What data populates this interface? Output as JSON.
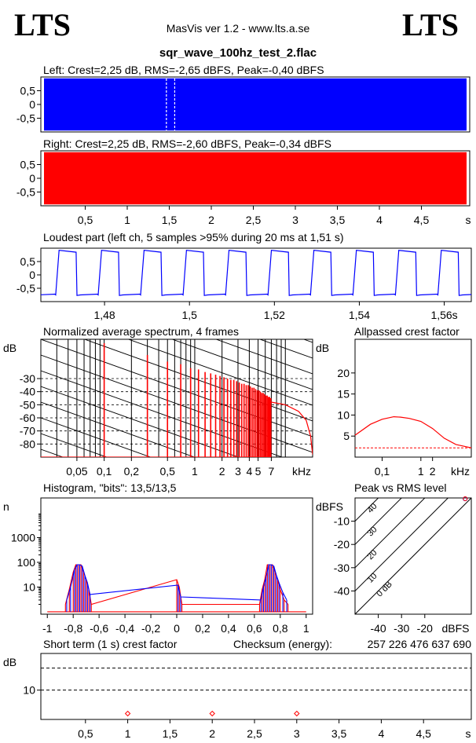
{
  "header": {
    "logo_left": "LTS",
    "logo_right": "LTS",
    "version": "MasVis ver 1.2 - www.lts.a.se",
    "filename": "sqr_wave_100hz_test_2.flac"
  },
  "colors": {
    "left": "#0000ff",
    "right": "#ff0000",
    "grid": "#000000"
  },
  "chart_data": [
    {
      "type": "area",
      "title": "Left: Crest=2,25 dB, RMS=-2,65 dBFS, Peak=-0,40 dBFS",
      "channel": "left",
      "amplitude": 0.95,
      "ylim": [
        -1,
        1
      ],
      "yticks": [
        {
          "v": 0.5,
          "label": "0,5"
        },
        {
          "v": 0,
          "label": "0"
        },
        {
          "v": -0.5,
          "label": "-0,5"
        }
      ],
      "xlim": [
        0,
        5
      ],
      "highlight_window": [
        1.47,
        1.57
      ],
      "grid": false
    },
    {
      "type": "area",
      "title": "Right: Crest=2,25 dB, RMS=-2,60 dBFS, Peak=-0,34 dBFS",
      "channel": "right",
      "amplitude": 0.95,
      "ylim": [
        -1,
        1
      ],
      "yticks": [
        {
          "v": 0.5,
          "label": "0,5"
        },
        {
          "v": 0,
          "label": "0"
        },
        {
          "v": -0.5,
          "label": "-0,5"
        }
      ],
      "xlim": [
        0,
        5
      ],
      "xticks": [
        {
          "v": 0.5,
          "label": "0,5"
        },
        {
          "v": 1,
          "label": "1"
        },
        {
          "v": 1.5,
          "label": "1,5"
        },
        {
          "v": 2,
          "label": "2"
        },
        {
          "v": 2.5,
          "label": "2,5"
        },
        {
          "v": 3,
          "label": "3"
        },
        {
          "v": 3.5,
          "label": "3,5"
        },
        {
          "v": 4,
          "label": "4"
        },
        {
          "v": 4.5,
          "label": "4,5"
        }
      ],
      "xunit": "s"
    },
    {
      "type": "line",
      "title": "Loudest part (left  ch, 5 samples >95% during 20 ms at 1,51 s)",
      "channel": "left",
      "frequency_hz": 100,
      "high": 0.9,
      "low": -0.75,
      "ylim": [
        -1,
        1
      ],
      "yticks": [
        {
          "v": 0.5,
          "label": "0,5"
        },
        {
          "v": 0,
          "label": "0"
        },
        {
          "v": -0.5,
          "label": "-0,5"
        }
      ],
      "xlim": [
        1.465,
        1.566
      ],
      "xticks": [
        {
          "v": 1.48,
          "label": "1,48"
        },
        {
          "v": 1.5,
          "label": "1,5"
        },
        {
          "v": 1.52,
          "label": "1,52"
        },
        {
          "v": 1.54,
          "label": "1,54"
        },
        {
          "v": 1.56,
          "label": "1,56s"
        }
      ]
    },
    {
      "type": "line",
      "title": "Normalized average spectrum, 4 frames",
      "ylabel": "dB",
      "ylim": [
        -90,
        0
      ],
      "yticks": [
        {
          "v": -30,
          "label": "-30"
        },
        {
          "v": -40,
          "label": "-40"
        },
        {
          "v": -50,
          "label": "-50"
        },
        {
          "v": -60,
          "label": "-60"
        },
        {
          "v": -70,
          "label": "-70"
        },
        {
          "v": -80,
          "label": "-80"
        }
      ],
      "xlim": [
        0.02,
        20
      ],
      "xscale": "log",
      "xticks": [
        {
          "v": 0.05,
          "label": "0,05"
        },
        {
          "v": 0.1,
          "label": "0,1"
        },
        {
          "v": 0.2,
          "label": "0,2"
        },
        {
          "v": 0.5,
          "label": "0,5"
        },
        {
          "v": 1,
          "label": "1"
        },
        {
          "v": 2,
          "label": "2"
        },
        {
          "v": 3,
          "label": "3"
        },
        {
          "v": 4,
          "label": "4"
        },
        {
          "v": 5,
          "label": "5"
        },
        {
          "v": 7,
          "label": "7"
        }
      ],
      "xunit": "kHz",
      "harmonics_khz": [
        0.1,
        0.3,
        0.5,
        0.7,
        0.9,
        1.1,
        1.3,
        1.5,
        1.7,
        1.9,
        2.1,
        2.3,
        2.5,
        2.7,
        2.9,
        3.1,
        3.3,
        3.5,
        3.7,
        3.9,
        4.1,
        4.3,
        4.5,
        4.7,
        4.9,
        5.1,
        5.3,
        5.5,
        5.7,
        5.9,
        6.1,
        6.3,
        6.5,
        6.7,
        6.9
      ],
      "harmonic_db": [
        -3,
        -12,
        -17,
        -19,
        -22,
        -23,
        -25,
        -26,
        -27,
        -28,
        -29,
        -30,
        -31,
        -31,
        -32,
        -33,
        -34,
        -34,
        -35,
        -35,
        -36,
        -37,
        -37,
        -38,
        -39,
        -39,
        -40,
        -41,
        -41,
        -42,
        -43,
        -43,
        -44,
        -44,
        -45
      ],
      "floor_db": -90,
      "noise_curve": [
        [
          7,
          -48
        ],
        [
          10,
          -50
        ],
        [
          14,
          -55
        ],
        [
          17,
          -62
        ],
        [
          19,
          -74
        ],
        [
          20,
          -88
        ]
      ]
    },
    {
      "type": "line",
      "title": "Allpassed crest factor",
      "ylabel": "dB",
      "ylim": [
        0,
        28
      ],
      "yticks": [
        {
          "v": 5,
          "label": "5"
        },
        {
          "v": 10,
          "label": "10"
        },
        {
          "v": 15,
          "label": "15"
        },
        {
          "v": 20,
          "label": "20"
        }
      ],
      "xlim": [
        0.02,
        20
      ],
      "xscale": "log",
      "xticks": [
        {
          "v": 0.1,
          "label": "0,1"
        },
        {
          "v": 1,
          "label": "1"
        },
        {
          "v": 2,
          "label": "2"
        }
      ],
      "xunit": "kHz",
      "x": [
        0.02,
        0.05,
        0.1,
        0.2,
        0.3,
        0.5,
        1,
        2,
        4,
        8,
        20
      ],
      "values": [
        5.2,
        7.8,
        9,
        9.6,
        9.5,
        9.2,
        8.5,
        6.8,
        4.5,
        3,
        2.2
      ],
      "reference_db": 2.2
    },
    {
      "type": "line",
      "title": "Histogram, \"bits\": 13,5/13,5",
      "ylabel": "n",
      "yscale": "log",
      "ylim": [
        0.8,
        40000
      ],
      "yticks": [
        {
          "v": 10,
          "label": "10"
        },
        {
          "v": 100,
          "label": "100"
        },
        {
          "v": 1000,
          "label": "1000"
        }
      ],
      "xlim": [
        -1.05,
        1.05
      ],
      "xticks": [
        {
          "v": -1,
          "label": "-1"
        },
        {
          "v": -0.8,
          "label": "-0,8"
        },
        {
          "v": -0.6,
          "label": "-0,6"
        },
        {
          "v": -0.4,
          "label": "-0,4"
        },
        {
          "v": -0.2,
          "label": "-0,2"
        },
        {
          "v": 0,
          "label": "0"
        },
        {
          "v": 0.2,
          "label": "0,2"
        },
        {
          "v": 0.4,
          "label": "0,4"
        },
        {
          "v": 0.6,
          "label": "0,6"
        },
        {
          "v": 0.8,
          "label": "0,8"
        },
        {
          "v": 1,
          "label": "1"
        }
      ],
      "series": [
        {
          "channel": "right",
          "x": [
            -0.86,
            -0.83,
            -0.8,
            -0.78,
            -0.76,
            -0.74,
            -0.72,
            -0.7,
            -0.68,
            -0.66,
            0,
            0.02,
            0.04,
            0.64,
            0.66,
            0.68,
            0.7,
            0.72,
            0.74,
            0.76,
            0.78,
            0.8,
            0.83,
            0.86
          ],
          "values": [
            2,
            8,
            40,
            80,
            80,
            80,
            40,
            20,
            8,
            2,
            20,
            10,
            2,
            2,
            8,
            20,
            80,
            80,
            80,
            40,
            20,
            8,
            3,
            2
          ]
        },
        {
          "channel": "left",
          "x": [
            -0.85,
            -0.82,
            -0.79,
            -0.77,
            -0.75,
            -0.73,
            -0.71,
            -0.69,
            -0.67,
            0.01,
            0.03,
            0.65,
            0.67,
            0.69,
            0.71,
            0.73,
            0.75,
            0.77,
            0.79,
            0.82,
            0.85
          ],
          "values": [
            3,
            10,
            50,
            80,
            80,
            70,
            30,
            15,
            5,
            12,
            4,
            3,
            10,
            25,
            80,
            80,
            70,
            30,
            15,
            6,
            3
          ]
        }
      ]
    },
    {
      "type": "scatter",
      "title": "Peak vs RMS level",
      "ylabel": "dBFS",
      "xlabel": "dBFS",
      "xlim": [
        -50,
        0
      ],
      "ylim": [
        -50,
        0
      ],
      "xticks": [
        {
          "v": -40,
          "label": "-40"
        },
        {
          "v": -30,
          "label": "-30"
        },
        {
          "v": -20,
          "label": "-20"
        }
      ],
      "yticks": [
        {
          "v": -10,
          "label": "-10"
        },
        {
          "v": -20,
          "label": "-20"
        },
        {
          "v": -30,
          "label": "-30"
        },
        {
          "v": -40,
          "label": "-40"
        }
      ],
      "crest_lines": [
        {
          "db": 0,
          "label": "0 dB"
        },
        {
          "db": 10,
          "label": "10"
        },
        {
          "db": 20,
          "label": "20"
        },
        {
          "db": 30,
          "label": "30"
        },
        {
          "db": 40,
          "label": "40"
        }
      ],
      "points": [
        {
          "channel": "left",
          "x": -2.65,
          "y": -0.4
        },
        {
          "channel": "right",
          "x": -2.6,
          "y": -0.34
        }
      ]
    },
    {
      "type": "scatter",
      "title": "Short term (1 s) crest factor",
      "checksum_label": "Checksum (energy):",
      "checksum_value": "257 226 476 637 690",
      "ylabel": "dB",
      "ylim": [
        2,
        20
      ],
      "yticks": [
        {
          "v": 10,
          "label": "10"
        }
      ],
      "grid_lines": [
        10,
        16
      ],
      "xlim": [
        0,
        5
      ],
      "xticks": [
        {
          "v": 0.5,
          "label": "0,5"
        },
        {
          "v": 1,
          "label": "1"
        },
        {
          "v": 1.5,
          "label": "1,5"
        },
        {
          "v": 2,
          "label": "2"
        },
        {
          "v": 2.5,
          "label": "2,5"
        },
        {
          "v": 3,
          "label": "3"
        },
        {
          "v": 3.5,
          "label": "3,5"
        },
        {
          "v": 4,
          "label": "4"
        },
        {
          "v": 4.5,
          "label": "4,5"
        }
      ],
      "xunit": "s",
      "x": [
        1,
        2,
        3
      ],
      "values": [
        3.6,
        3.6,
        3.6
      ]
    }
  ]
}
